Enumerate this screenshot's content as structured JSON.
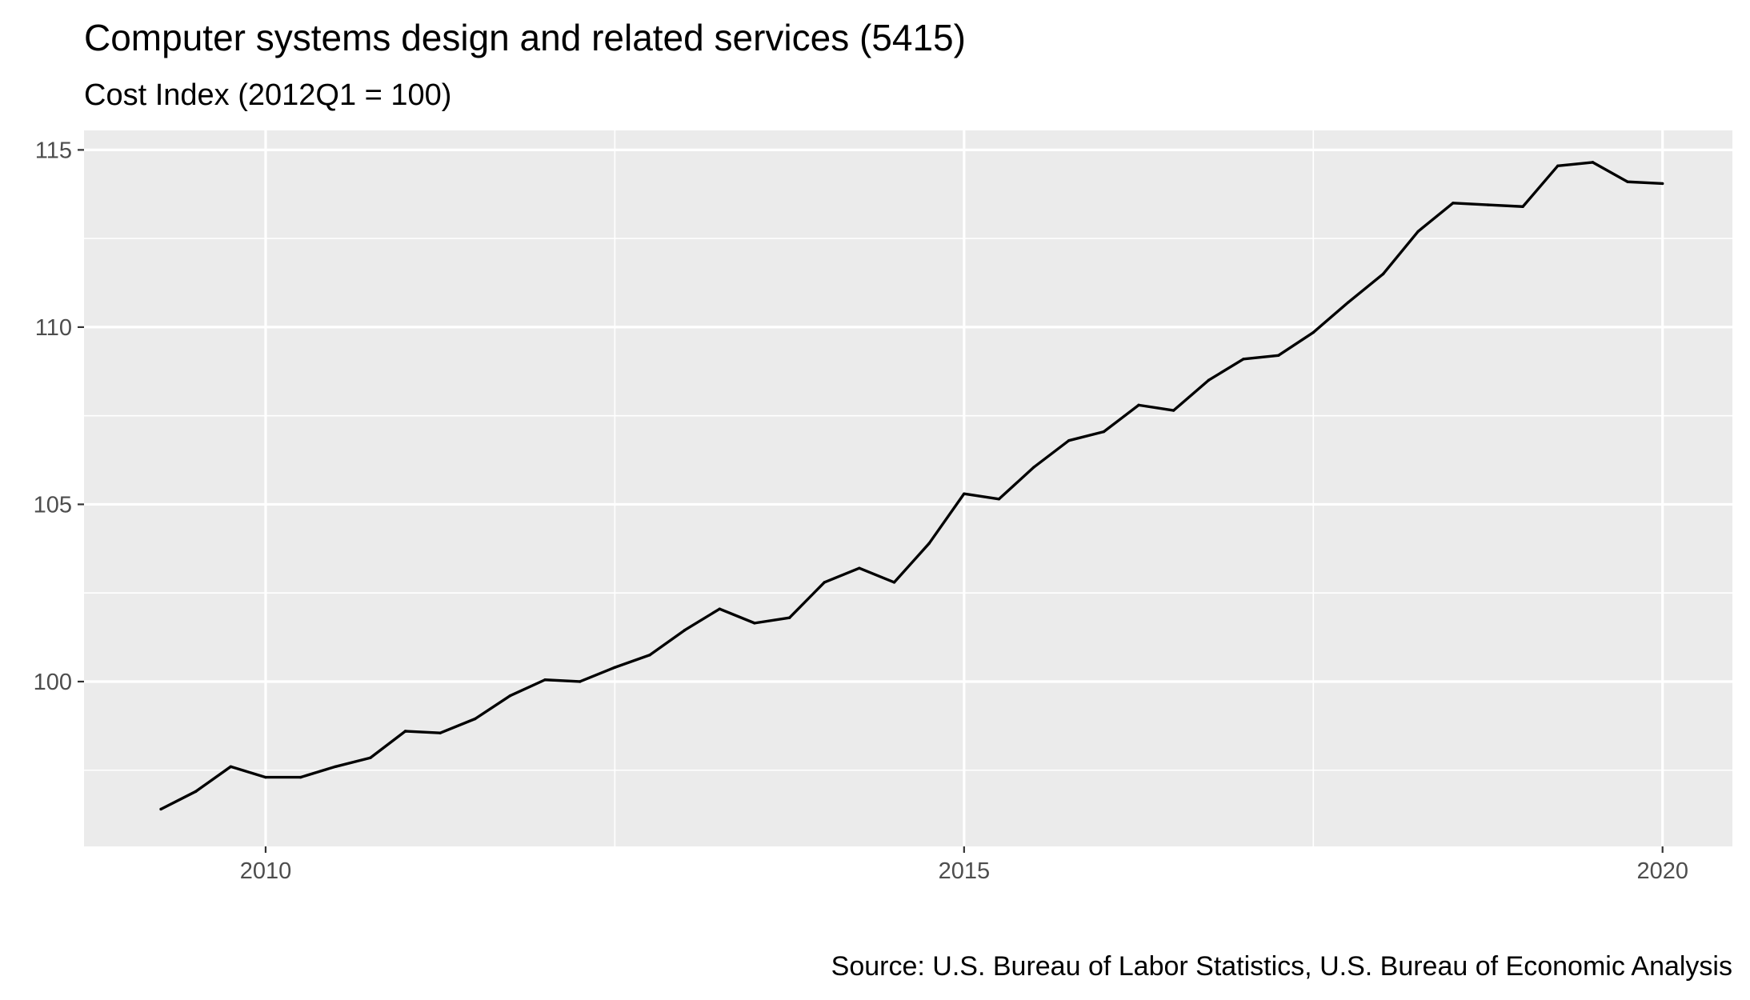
{
  "chart_data": {
    "type": "line",
    "title": "Computer systems design and related services (5415)",
    "subtitle": "Cost Index (2012Q1 = 100)",
    "caption": "Source: U.S. Bureau of Labor Statistics, U.S. Bureau of Economic Analysis",
    "xlabel": "",
    "ylabel": "",
    "xlim": [
      2008.7,
      2020.5
    ],
    "ylim": [
      95.35,
      115.55
    ],
    "x_ticks": [
      2010,
      2015,
      2020
    ],
    "x_tick_labels": [
      "2010",
      "2015",
      "2020"
    ],
    "x_minor_ticks": [
      2012.5,
      2017.5
    ],
    "y_ticks": [
      100,
      105,
      110,
      115
    ],
    "y_tick_labels": [
      "100",
      "105",
      "110",
      "115"
    ],
    "y_minor_ticks": [
      97.5,
      102.5,
      107.5,
      112.5
    ],
    "grid": true,
    "legend": "none",
    "colors": {
      "panel": "#ebebeb",
      "grid": "#ffffff",
      "line": "#000000",
      "tick_label": "#4d4d4d"
    },
    "series": [
      {
        "x": [
          2009.25,
          2009.5,
          2009.75,
          2010.0,
          2010.25,
          2010.5,
          2010.75,
          2011.0,
          2011.25,
          2011.5,
          2011.75,
          2012.0,
          2012.25,
          2012.5,
          2012.75,
          2013.0,
          2013.25,
          2013.5,
          2013.75,
          2014.0,
          2014.25,
          2014.5,
          2014.75,
          2015.0,
          2015.25,
          2015.5,
          2015.75,
          2016.0,
          2016.25,
          2016.5,
          2016.75,
          2017.0,
          2017.25,
          2017.5,
          2017.75,
          2018.0,
          2018.25,
          2018.5,
          2018.75,
          2019.0,
          2019.25,
          2019.5,
          2019.75,
          2020.0
        ],
        "values": [
          96.4,
          96.9,
          97.6,
          97.3,
          97.3,
          97.6,
          97.85,
          98.6,
          98.55,
          98.95,
          99.6,
          100.05,
          100.0,
          100.4,
          100.75,
          101.45,
          102.05,
          101.65,
          101.8,
          102.8,
          103.2,
          102.8,
          103.9,
          105.3,
          105.15,
          106.05,
          106.8,
          107.05,
          107.8,
          107.65,
          108.5,
          109.1,
          109.2,
          109.85,
          110.7,
          111.5,
          112.7,
          113.5,
          113.45,
          113.4,
          114.55,
          114.65,
          114.1,
          114.05
        ]
      }
    ]
  }
}
